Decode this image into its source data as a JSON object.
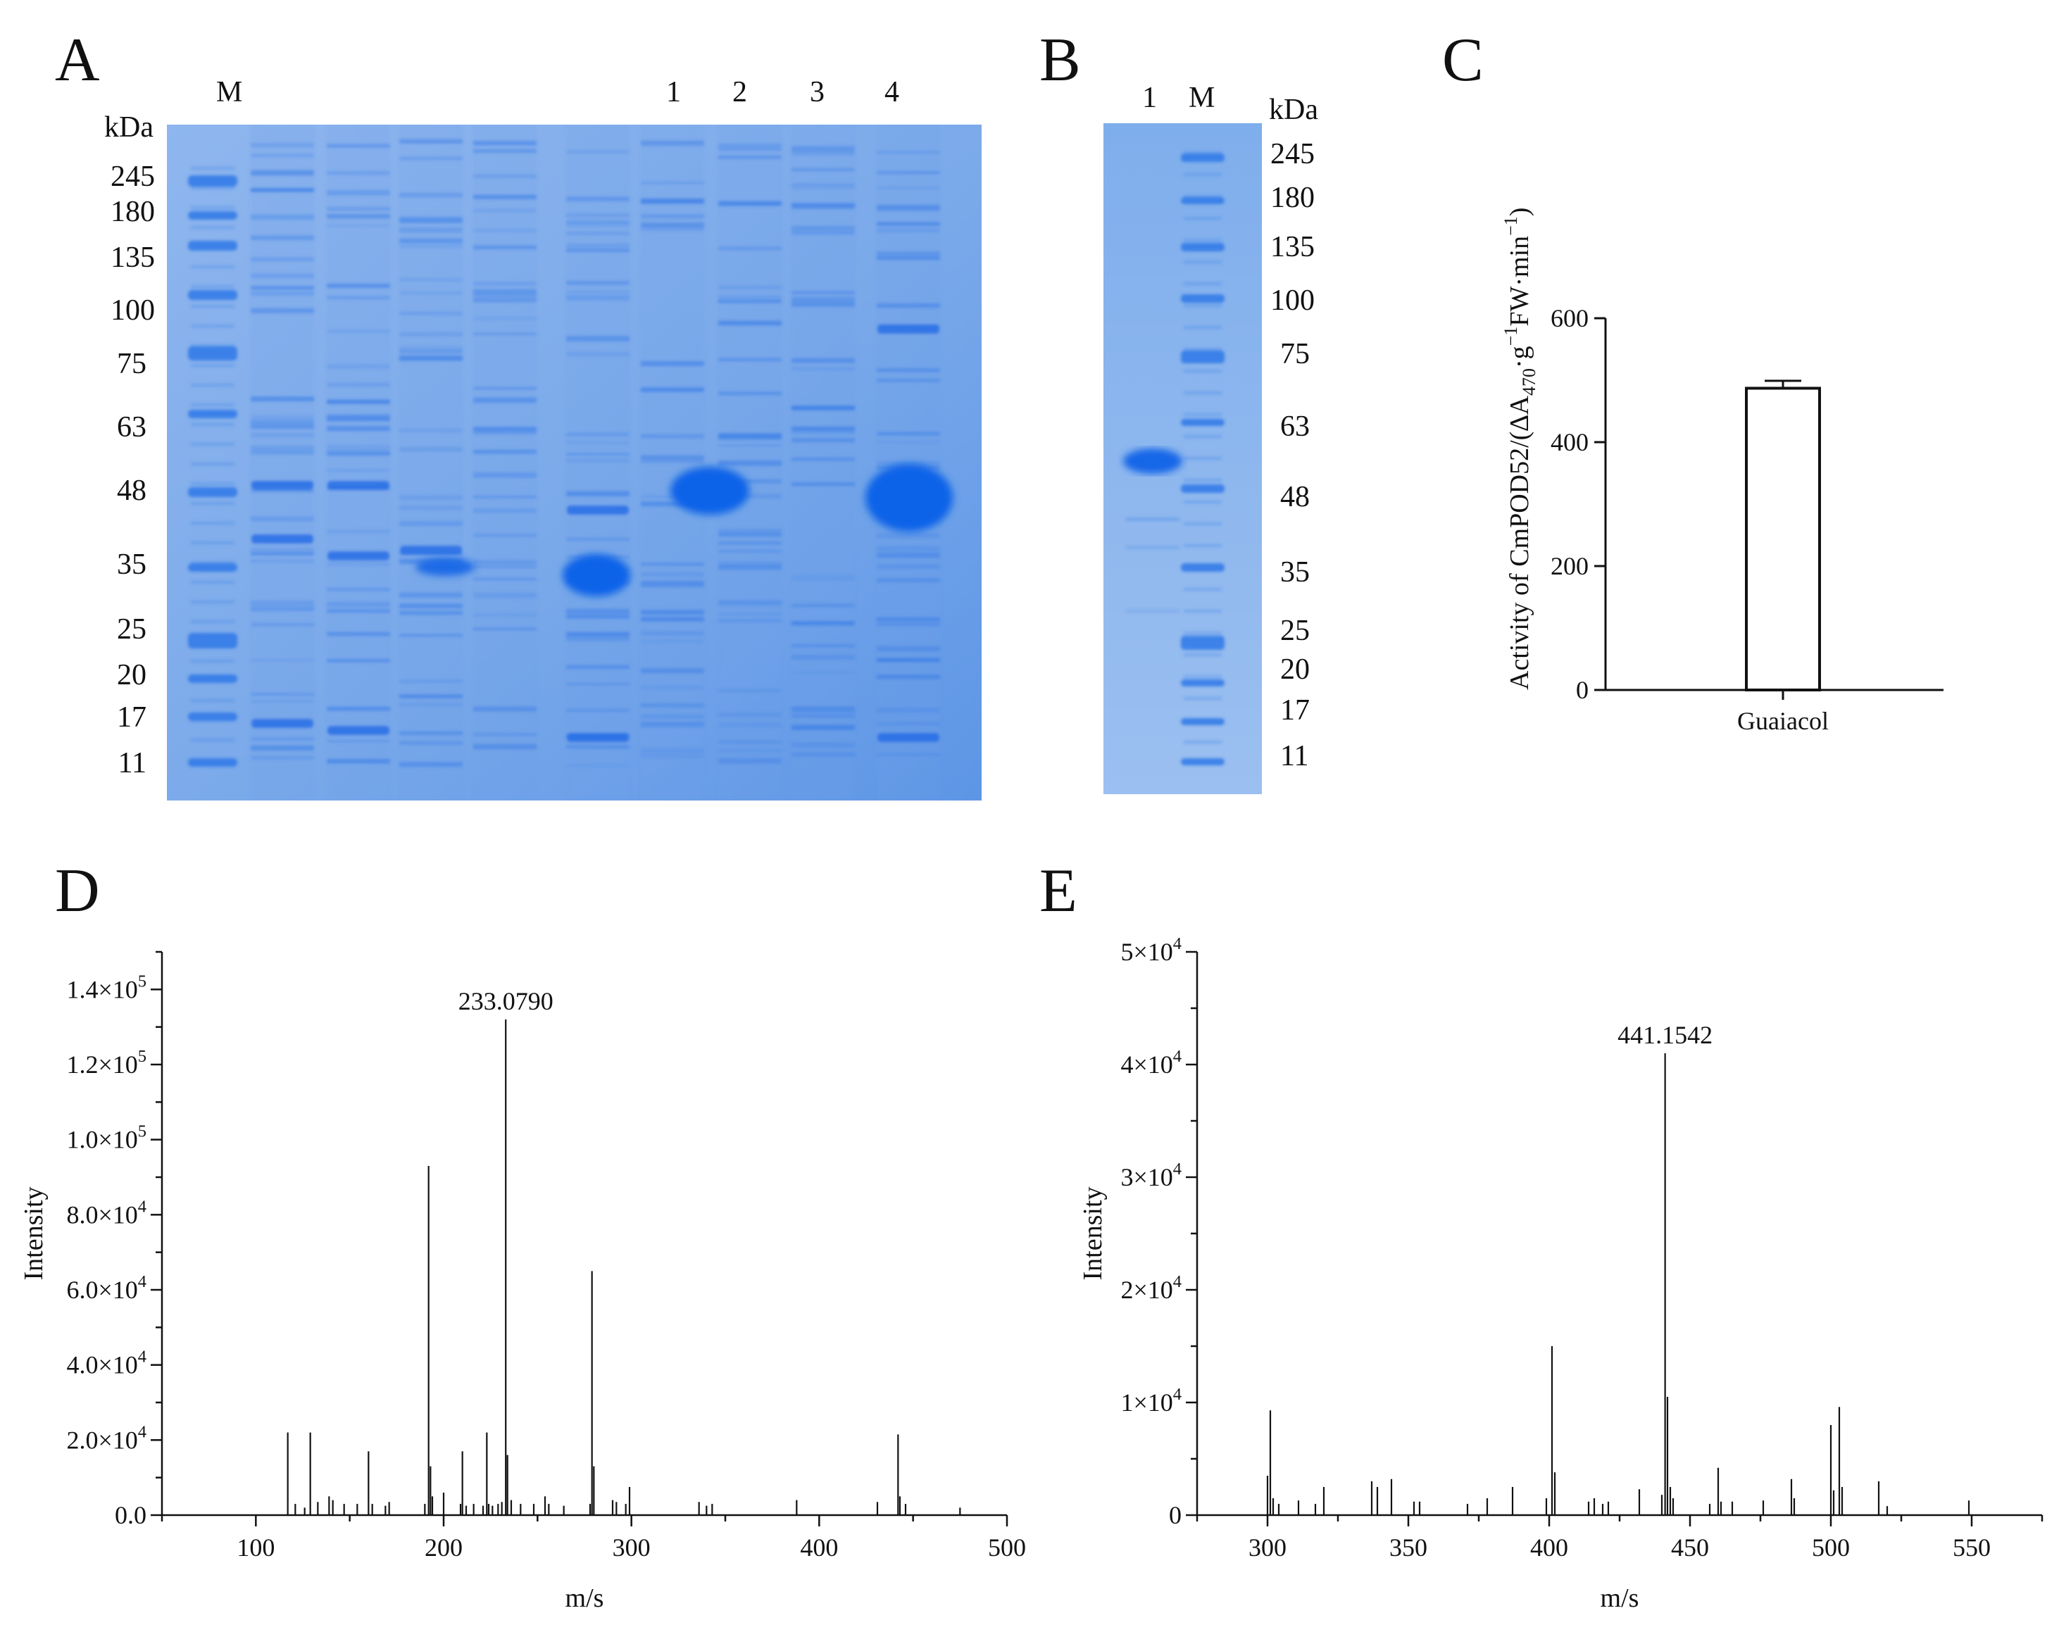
{
  "panels": {
    "A": {
      "letter": "A",
      "marker_label": "M",
      "lane_numbers": [
        "1",
        "2",
        "3",
        "4"
      ],
      "unit": "kDa",
      "mw_labels": [
        "245",
        "180",
        "135",
        "100",
        "75",
        "63",
        "48",
        "35",
        "25",
        "20",
        "17",
        "11"
      ]
    },
    "B": {
      "letter": "B",
      "lane_labels": [
        "1",
        "M"
      ],
      "unit": "kDa",
      "mw_labels": [
        "245",
        "180",
        "135",
        "100",
        "75",
        "63",
        "48",
        "35",
        "25",
        "20",
        "17",
        "11"
      ]
    },
    "C": {
      "letter": "C"
    },
    "D": {
      "letter": "D"
    },
    "E": {
      "letter": "E"
    }
  },
  "colors": {
    "gel_background": "#5b95e6",
    "gel_band": "#1566e6",
    "ink": "#111111"
  },
  "chart_data": [
    {
      "id": "C",
      "type": "bar",
      "categories": [
        "Guaiacol"
      ],
      "values": [
        487
      ],
      "error": [
        12
      ],
      "ylabel_parts": [
        "Activity of CmPOD52/(∆A",
        "470",
        "·g",
        "−1",
        "FW·min",
        "−1",
        ")"
      ],
      "ylim": [
        0,
        600
      ],
      "yticks": [
        0,
        200,
        400,
        600
      ]
    },
    {
      "id": "D",
      "type": "bar",
      "xlabel": "m/s",
      "ylabel": "Intensity",
      "xlim": [
        50,
        500
      ],
      "ylim": [
        0,
        150000
      ],
      "xticks": [
        100,
        200,
        300,
        400,
        500
      ],
      "yticks": [
        0,
        20000,
        40000,
        60000,
        80000,
        100000,
        120000,
        140000
      ],
      "ytick_labels": [
        {
          "m": "0.0",
          "e": ""
        },
        {
          "m": "2.0×10",
          "e": "4"
        },
        {
          "m": "4.0×10",
          "e": "4"
        },
        {
          "m": "6.0×10",
          "e": "4"
        },
        {
          "m": "8.0×10",
          "e": "4"
        },
        {
          "m": "1.0×10",
          "e": "5"
        },
        {
          "m": "1.2×10",
          "e": "5"
        },
        {
          "m": "1.4×10",
          "e": "5"
        }
      ],
      "peak_label": "233.0790",
      "peak_label_x": 233.079,
      "peaks": [
        [
          117,
          22000
        ],
        [
          121,
          3000
        ],
        [
          126,
          2000
        ],
        [
          129,
          22000
        ],
        [
          133,
          3500
        ],
        [
          139,
          5000
        ],
        [
          141,
          4000
        ],
        [
          147,
          3000
        ],
        [
          154,
          3000
        ],
        [
          160,
          17000
        ],
        [
          162,
          3000
        ],
        [
          169,
          2500
        ],
        [
          171,
          3500
        ],
        [
          190,
          3000
        ],
        [
          192,
          93000
        ],
        [
          193,
          13000
        ],
        [
          194,
          5000
        ],
        [
          200,
          6000
        ],
        [
          209,
          3000
        ],
        [
          210,
          17000
        ],
        [
          212,
          2500
        ],
        [
          216,
          3000
        ],
        [
          221,
          2500
        ],
        [
          223,
          22000
        ],
        [
          224,
          3000
        ],
        [
          226,
          2500
        ],
        [
          229,
          3000
        ],
        [
          231,
          3500
        ],
        [
          233.079,
          132000
        ],
        [
          234,
          16000
        ],
        [
          236,
          4000
        ],
        [
          241,
          3000
        ],
        [
          248,
          3000
        ],
        [
          254,
          5000
        ],
        [
          256,
          3000
        ],
        [
          264,
          2500
        ],
        [
          278,
          3000
        ],
        [
          279,
          65000
        ],
        [
          280,
          13000
        ],
        [
          290,
          4000
        ],
        [
          292,
          3500
        ],
        [
          297,
          3000
        ],
        [
          299,
          7500
        ],
        [
          336,
          3500
        ],
        [
          340,
          2500
        ],
        [
          343,
          3000
        ],
        [
          388,
          4000
        ],
        [
          431,
          3500
        ],
        [
          442,
          21500
        ],
        [
          443,
          5000
        ],
        [
          446,
          3000
        ],
        [
          475,
          2000
        ]
      ]
    },
    {
      "id": "E",
      "type": "bar",
      "xlabel": "m/s",
      "ylabel": "Intensity",
      "xlim": [
        275,
        575
      ],
      "ylim": [
        0,
        50000
      ],
      "xticks": [
        300,
        350,
        400,
        450,
        500,
        550
      ],
      "yticks": [
        0,
        10000,
        20000,
        30000,
        40000,
        50000
      ],
      "ytick_labels": [
        {
          "m": "0",
          "e": ""
        },
        {
          "m": "1×10",
          "e": "4"
        },
        {
          "m": "2×10",
          "e": "4"
        },
        {
          "m": "3×10",
          "e": "4"
        },
        {
          "m": "4×10",
          "e": "4"
        },
        {
          "m": "5×10",
          "e": "4"
        }
      ],
      "peak_label": "441.1542",
      "peak_label_x": 441.1542,
      "peaks": [
        [
          300,
          3500
        ],
        [
          301,
          9300
        ],
        [
          302,
          1500
        ],
        [
          304,
          1000
        ],
        [
          311,
          1300
        ],
        [
          317,
          1000
        ],
        [
          320,
          2500
        ],
        [
          337,
          3000
        ],
        [
          339,
          2500
        ],
        [
          344,
          3200
        ],
        [
          352,
          1200
        ],
        [
          354,
          1200
        ],
        [
          371,
          1000
        ],
        [
          378,
          1500
        ],
        [
          387,
          2500
        ],
        [
          399,
          1500
        ],
        [
          401,
          15000
        ],
        [
          402,
          3800
        ],
        [
          414,
          1200
        ],
        [
          416,
          1500
        ],
        [
          419,
          1000
        ],
        [
          421,
          1200
        ],
        [
          432,
          2300
        ],
        [
          440,
          1800
        ],
        [
          441.1542,
          41000
        ],
        [
          442,
          10500
        ],
        [
          443,
          2500
        ],
        [
          444,
          1500
        ],
        [
          457,
          1000
        ],
        [
          460,
          4200
        ],
        [
          461,
          1200
        ],
        [
          465,
          1200
        ],
        [
          476,
          1300
        ],
        [
          486,
          3200
        ],
        [
          487,
          1500
        ],
        [
          500,
          8000
        ],
        [
          501,
          2200
        ],
        [
          503,
          9600
        ],
        [
          504,
          2500
        ],
        [
          517,
          3000
        ],
        [
          520,
          800
        ],
        [
          549,
          1300
        ]
      ]
    }
  ]
}
